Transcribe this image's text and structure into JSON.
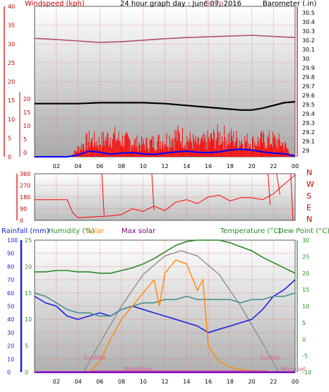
{
  "chart_data": [
    {
      "type": "line",
      "title": "24 hour graph day : June 07, 2016",
      "overlapping_title_fragment": "Temp. ---",
      "y_left_label": "Windspeed (kph)",
      "y_right_label": "Barometer (.in)",
      "y_left_ticks": [
        "40",
        "35",
        "30",
        "25",
        "20",
        "15",
        "10",
        "5",
        "0"
      ],
      "y_left_small_ticks": [
        "20",
        "15",
        "10",
        "5",
        "0"
      ],
      "y_right_ticks": [
        "30.5",
        "30.4",
        "30.3",
        "30.2",
        "30.1",
        "30",
        "29.9",
        "29.8",
        "29.7",
        "29.6",
        "29.5",
        "29.4",
        "29.3",
        "29.2",
        "29.1",
        "29"
      ],
      "x_ticks": [
        "02",
        "04",
        "06",
        "08",
        "10",
        "12",
        "14",
        "16",
        "18",
        "20",
        "22",
        "00"
      ],
      "ylim_left": [
        0,
        40
      ],
      "ylim_right": [
        28.93,
        30.57
      ],
      "series": [
        {
          "name": "Temperature",
          "color": "#b05070",
          "x": [
            0,
            2,
            4,
            6,
            8,
            10,
            12,
            14,
            16,
            18,
            20,
            22,
            24
          ],
          "y": [
            31.5,
            31.2,
            30.8,
            30.4,
            30.6,
            31.0,
            31.4,
            31.7,
            31.9,
            32.1,
            32.3,
            32.0,
            31.7
          ]
        },
        {
          "name": "Barometer",
          "color": "#000000",
          "x": [
            0,
            2,
            4,
            6,
            8,
            10,
            12,
            14,
            16,
            18,
            19,
            20,
            21,
            22,
            23,
            24
          ],
          "y": [
            29.51,
            29.51,
            29.51,
            29.52,
            29.52,
            29.52,
            29.51,
            29.49,
            29.47,
            29.45,
            29.44,
            29.44,
            29.46,
            29.49,
            29.52,
            29.53
          ]
        },
        {
          "name": "Wind gust",
          "color": "#ff0000",
          "x": [
            0,
            1,
            2,
            3,
            3.5,
            4,
            5,
            6,
            7,
            8,
            9,
            10,
            11,
            12,
            13,
            14,
            15,
            16,
            17,
            18,
            19,
            20,
            21,
            22,
            23,
            23.5,
            24
          ],
          "y": [
            0,
            0,
            0,
            0,
            0.5,
            2,
            4,
            3.5,
            5,
            4,
            3.5,
            3,
            3.5,
            4,
            5,
            4.5,
            3,
            4,
            5,
            4.5,
            4,
            3.5,
            4,
            4,
            3,
            1,
            0
          ]
        },
        {
          "name": "Wind average",
          "color": "#0000ff",
          "x": [
            0,
            3,
            4,
            5,
            6,
            7,
            8,
            9,
            10,
            11,
            12,
            13,
            14,
            15,
            16,
            17,
            18,
            19,
            20,
            21,
            22,
            23,
            24
          ],
          "y": [
            0,
            0,
            0.5,
            1.5,
            1.2,
            0.7,
            1.0,
            1.1,
            0.8,
            0.6,
            1.0,
            1.3,
            1.5,
            1.2,
            1.1,
            1.3,
            1.8,
            2.0,
            1.8,
            1.3,
            1.0,
            0.8,
            0.2
          ]
        }
      ]
    },
    {
      "type": "line",
      "y_right_labels": [
        "N",
        "W",
        "S",
        "E",
        "N"
      ],
      "y_left_ticks": [
        "360",
        "270",
        "180",
        "90",
        "0"
      ],
      "ylim": [
        0,
        360
      ],
      "series": [
        {
          "name": "Wind direction",
          "color": "#ff0000",
          "x": [
            0,
            2,
            3,
            3.5,
            4,
            5,
            6,
            7,
            8,
            9,
            10,
            11,
            12,
            13,
            14,
            15,
            16,
            17,
            18,
            19,
            20,
            21,
            22,
            23,
            24
          ],
          "y": [
            160,
            160,
            160,
            60,
            20,
            25,
            30,
            35,
            45,
            90,
            70,
            110,
            75,
            140,
            160,
            130,
            180,
            195,
            150,
            175,
            175,
            160,
            205,
            280,
            350
          ]
        }
      ]
    },
    {
      "type": "line",
      "labels": {
        "rainfall": "Rainfall (mm)",
        "humidity": "Humidity (%)",
        "solar": "Solar",
        "max_solar": "Max solar",
        "temperature": "Temperature (°C)",
        "dew_point": "Dew Point (°C)",
        "sunrise": "SunRise",
        "sunset": "SunSet",
        "moonrise": "MoonRise",
        "moonset": "MoonSet"
      },
      "y_left1_ticks": [
        "100",
        "90",
        "80",
        "70",
        "60",
        "50",
        "40",
        "30",
        "20",
        "10",
        "0"
      ],
      "y_left2_ticks": [
        "25",
        "20",
        "15",
        "10",
        "5",
        "0"
      ],
      "y_right_ticks": [
        "30",
        "25",
        "20",
        "15",
        "10",
        "5",
        "0",
        "-5",
        "-10"
      ],
      "x_ticks": [
        "02",
        "04",
        "06",
        "08",
        "10",
        "12",
        "14",
        "16",
        "18",
        "20",
        "22",
        "00"
      ],
      "series": [
        {
          "name": "Humidity",
          "color": "#2a8a2a",
          "x": [
            0,
            1,
            2,
            3,
            4,
            5,
            6,
            7,
            8,
            9,
            10,
            11,
            12,
            13,
            14,
            15,
            16,
            17,
            18,
            19,
            20,
            21,
            22,
            23,
            24
          ],
          "y": [
            76,
            76,
            77,
            77,
            76,
            76,
            75,
            75,
            77,
            79,
            82,
            86,
            91,
            96,
            99,
            100,
            100,
            100,
            98,
            95,
            92,
            87,
            83,
            79,
            75
          ]
        },
        {
          "name": "Temperature",
          "color": "#2020e0",
          "x": [
            0,
            1,
            2,
            3,
            4,
            5,
            6,
            7,
            8,
            9,
            10,
            11,
            12,
            13,
            14,
            15,
            16,
            17,
            18,
            19,
            20,
            21,
            22,
            23,
            24
          ],
          "y": [
            13,
            11,
            10,
            7,
            6,
            7,
            8,
            7,
            9,
            10,
            9,
            8,
            7,
            6,
            5,
            4,
            2,
            3,
            4,
            5,
            6,
            9,
            13,
            15,
            18
          ]
        },
        {
          "name": "Dew Point",
          "color": "#4a9090",
          "x": [
            0,
            1,
            2,
            3,
            4,
            5,
            6,
            7,
            8,
            9,
            10,
            11,
            12,
            13,
            14,
            15,
            16,
            17,
            18,
            19,
            20,
            21,
            22,
            23,
            24
          ],
          "y": [
            14,
            13,
            11,
            9,
            8,
            8,
            7,
            7,
            9,
            10,
            11,
            11,
            12,
            12,
            13,
            12,
            12,
            12,
            12,
            11,
            12,
            12,
            13,
            13,
            14
          ]
        },
        {
          "name": "Solar",
          "color": "#ff8800",
          "x": [
            5,
            6,
            7,
            8,
            9,
            10,
            11,
            11.5,
            12,
            13,
            14,
            15,
            15.5,
            16,
            17,
            18,
            19,
            20,
            21,
            22,
            23,
            24
          ],
          "y": [
            0,
            8,
            25,
            40,
            50,
            60,
            70,
            50,
            75,
            85,
            82,
            62,
            70,
            20,
            8,
            4,
            2,
            1,
            0,
            0,
            0,
            0
          ]
        },
        {
          "name": "Max solar",
          "color": "#909090",
          "x": [
            4.5,
            6,
            8,
            10,
            12,
            13.5,
            15,
            17,
            19,
            21,
            22.5
          ],
          "y": [
            0,
            22,
            50,
            74,
            88,
            92,
            88,
            74,
            50,
            22,
            0
          ]
        }
      ]
    }
  ]
}
